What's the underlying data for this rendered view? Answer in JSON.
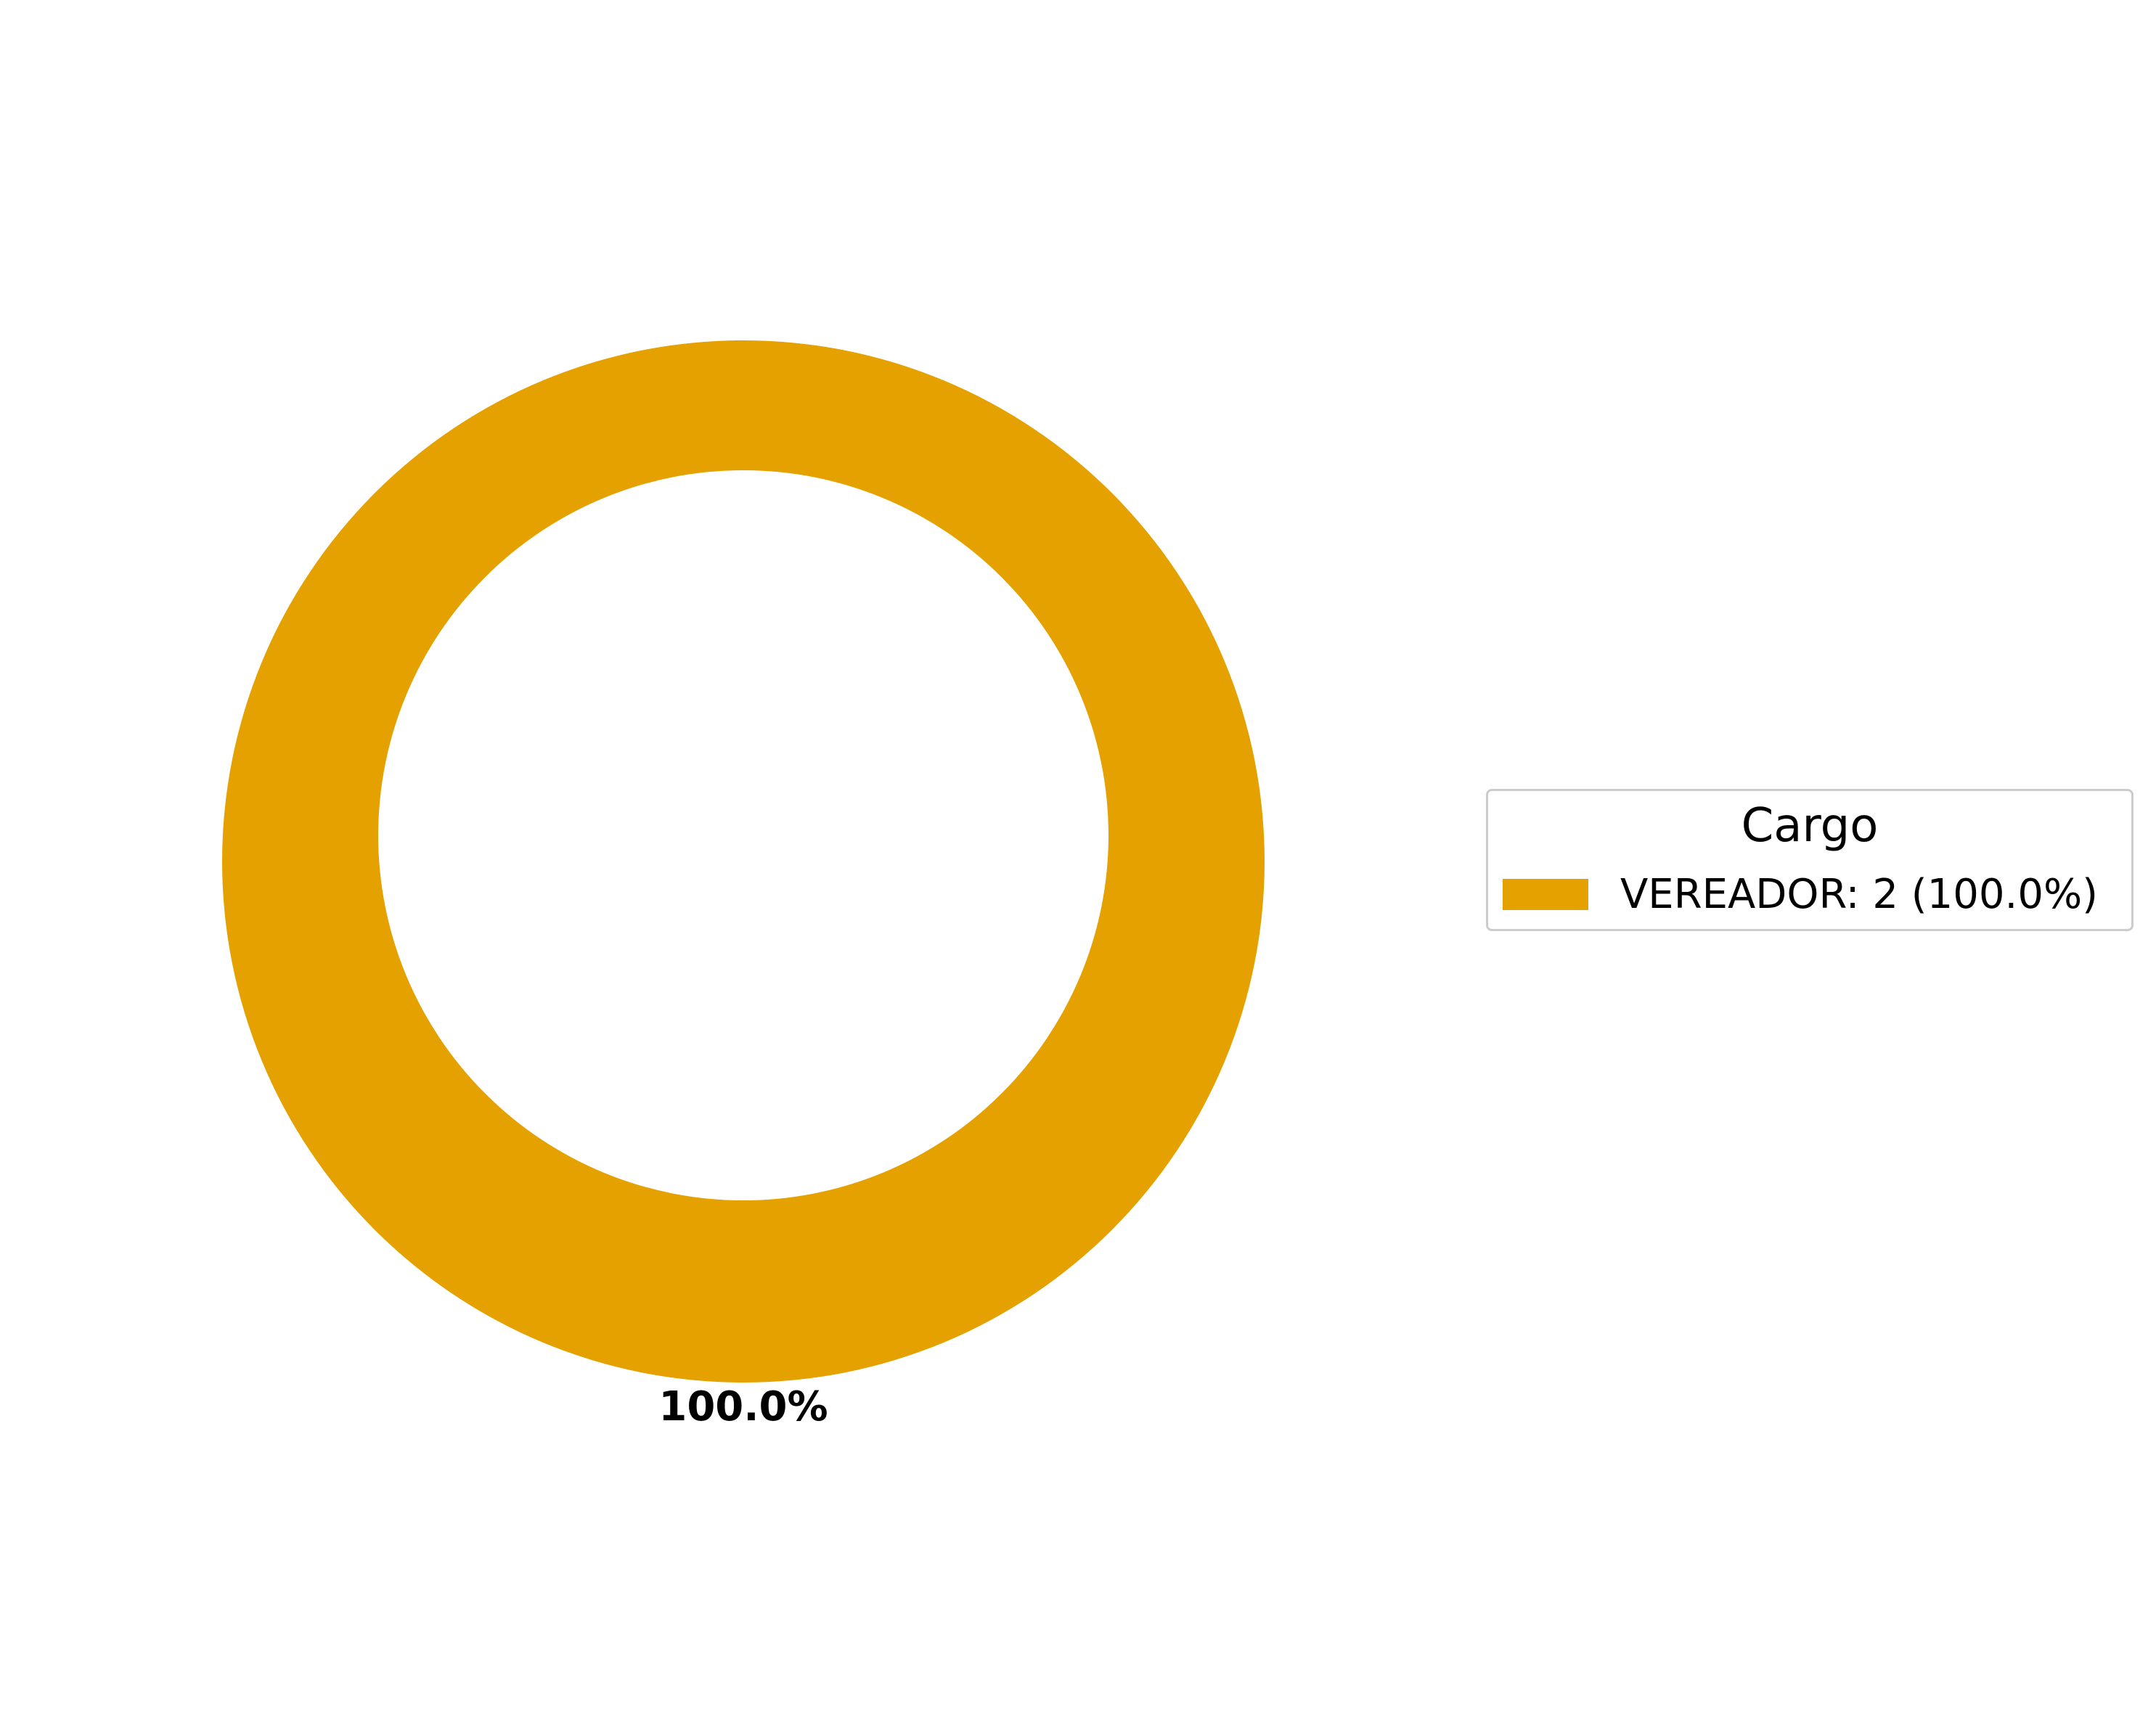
{
  "chart_data": {
    "type": "pie",
    "variant": "donut",
    "title": "",
    "slices": [
      {
        "label": "VEREADOR",
        "value": 2,
        "percent": 100.0,
        "color": "#E4A100",
        "pct_label": "100.0%"
      }
    ],
    "legend": {
      "title": "Cargo",
      "placement": "right",
      "entries": [
        {
          "label": "VEREADOR: 2 (100.0%)",
          "color": "#E4A100"
        }
      ]
    }
  }
}
